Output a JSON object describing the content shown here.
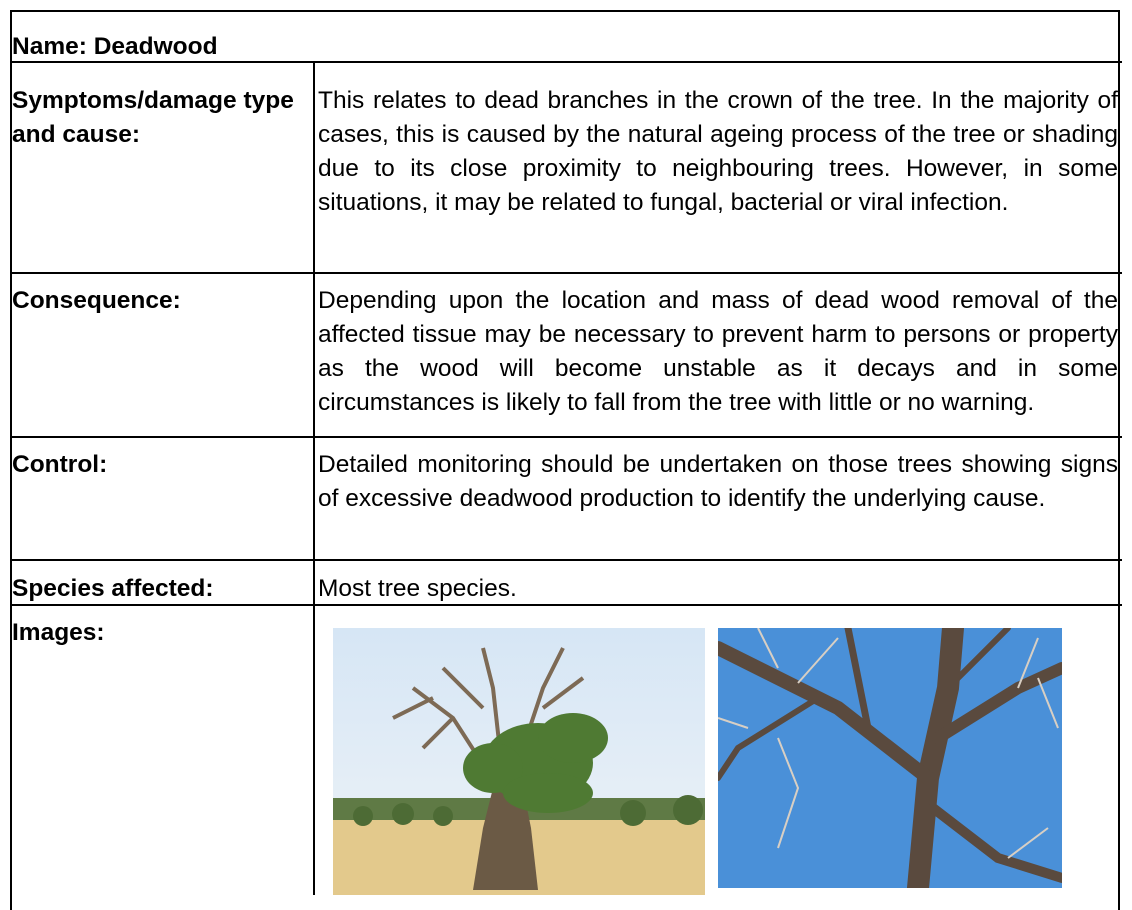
{
  "header": {
    "title": "Name: Deadwood"
  },
  "rows": [
    {
      "label": "Symptoms/damage type and cause:",
      "text": "This relates to dead branches in the crown of the tree.  In the majority of cases, this is caused by the natural ageing process of the tree or shading due to its close proximity to neighbouring trees.  However, in some situations, it may be related to fungal, bacterial or viral infection."
    },
    {
      "label": "Consequence:",
      "text": "Depending upon the location and mass of dead wood removal of the affected tissue may be necessary to prevent harm to persons or property as the wood will become unstable as it decays and in some circumstances is likely to fall from the tree with little or no warning."
    },
    {
      "label": "Control:",
      "text": "Detailed monitoring should be undertaken on those trees showing signs of excessive deadwood production to identify the underlying cause."
    },
    {
      "label": "Species affected:",
      "text": "Most tree species."
    }
  ],
  "images": {
    "label": "Images:"
  }
}
